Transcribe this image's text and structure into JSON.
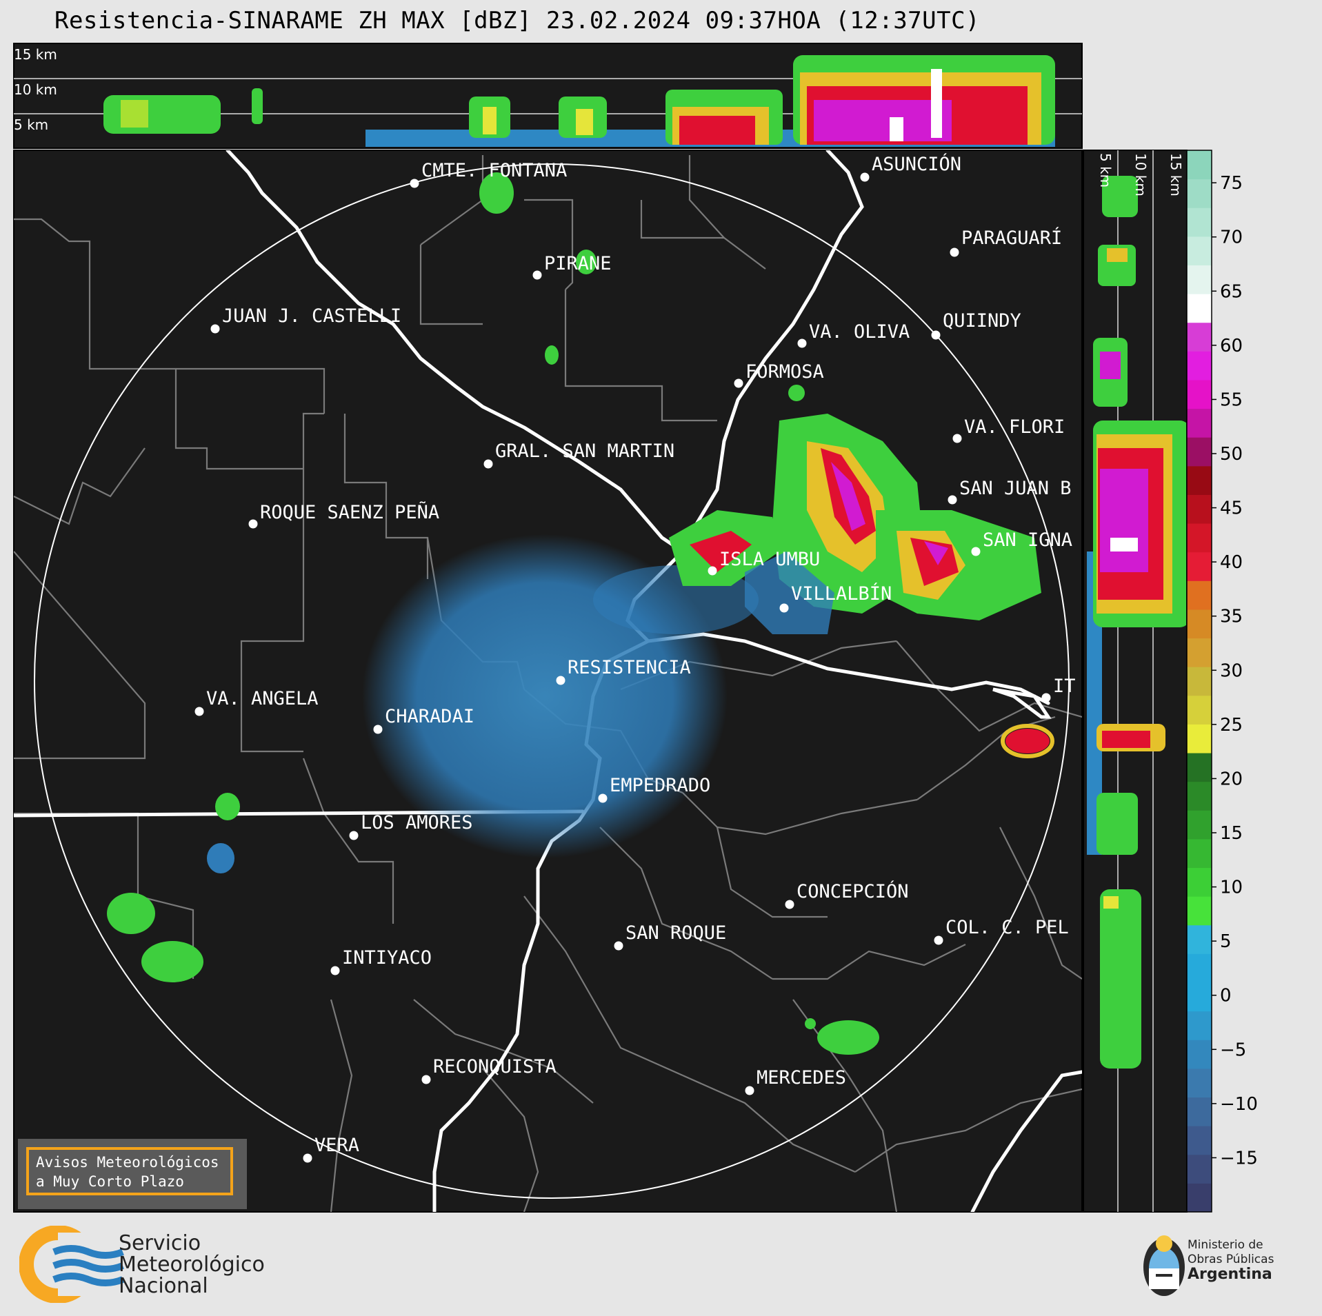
{
  "title": "Resistencia-SINARAME ZH MAX [dBZ] 23.02.2024 09:37HOA (12:37UTC)",
  "height_labels": [
    "15 km",
    "10 km",
    "5 km"
  ],
  "side_height_labels": [
    "5 km",
    "10 km",
    "15 km"
  ],
  "colorbar": {
    "ticks": [
      "75",
      "70",
      "65",
      "60",
      "55",
      "50",
      "45",
      "40",
      "35",
      "30",
      "25",
      "20",
      "15",
      "10",
      "5",
      "0",
      "−5",
      "−10",
      "−15"
    ]
  },
  "cities": [
    {
      "name": "CMTE. FONTANA"
    },
    {
      "name": "ASUNCIÓN"
    },
    {
      "name": "PIRANE"
    },
    {
      "name": "PARAGUARÍ"
    },
    {
      "name": "JUAN J. CASTELLI"
    },
    {
      "name": "VA. OLIVA"
    },
    {
      "name": "QUIINDY"
    },
    {
      "name": "FORMOSA"
    },
    {
      "name": "VA. FLORI"
    },
    {
      "name": "GRAL. SAN MARTIN"
    },
    {
      "name": "SAN JUAN B"
    },
    {
      "name": "ROQUE SAENZ PEÑA"
    },
    {
      "name": "SAN IGNA"
    },
    {
      "name": "ISLA UMBU"
    },
    {
      "name": "VILLALBÍN"
    },
    {
      "name": "RESISTENCIA"
    },
    {
      "name": "IT"
    },
    {
      "name": "VA. ANGELA"
    },
    {
      "name": "CHARADAI"
    },
    {
      "name": "EMPEDRADO"
    },
    {
      "name": "LOS AMORES"
    },
    {
      "name": "CONCEPCIÓN"
    },
    {
      "name": "SAN ROQUE"
    },
    {
      "name": "COL. C. PEL"
    },
    {
      "name": "INTIYACO"
    },
    {
      "name": "RECONQUISTA"
    },
    {
      "name": "MERCEDES"
    },
    {
      "name": "VERA"
    }
  ],
  "notice": {
    "line1": "Avisos Meteorológicos",
    "line2": "a Muy Corto Plazo"
  },
  "agency": {
    "line1": "Servicio",
    "line2": "Meteorológico",
    "line3": "Nacional"
  },
  "ministry": {
    "line1": "Ministerio de",
    "line2": "Obras Públicas",
    "line3": "Argentina"
  },
  "colors": {
    "map_bg": "#1a1a1a",
    "page_bg": "#e6e6e6",
    "accent": "#f4a31a"
  }
}
